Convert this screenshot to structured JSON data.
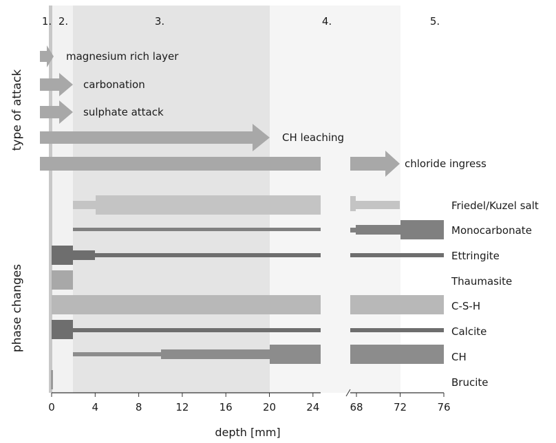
{
  "zone_labels": [
    "1.",
    "2.",
    "3.",
    "4.",
    "5."
  ],
  "section_labels": {
    "attack": "type of attack",
    "phase": "phase changes"
  },
  "attacks": [
    "magnesium rich layer",
    "carbonation",
    "sulphate attack",
    "CH leaching",
    "chloride ingress"
  ],
  "phases": [
    "Friedel/Kuzel salt",
    "Monocarbonate",
    "Ettringite",
    "Thaumasite",
    "C-S-H",
    "Calcite",
    "CH",
    "Brucite"
  ],
  "axis": {
    "xlabel": "depth [mm]",
    "ticks_left": [
      "0",
      "4",
      "8",
      "12",
      "16",
      "20",
      "24"
    ],
    "ticks_right": [
      "68",
      "72",
      "76"
    ]
  },
  "colors": {
    "arrow": "#a8a8a8",
    "bar_light": "#c4c4c4",
    "bar_mid": "#a8a8a8",
    "bar_dark": "#808080",
    "bar_darker": "#6e6e6e",
    "zone2": "#f2f2f2",
    "zone3": "#e4e4e4",
    "zone4": "#f5f5f5",
    "zone1": "#c8c8c8"
  }
}
